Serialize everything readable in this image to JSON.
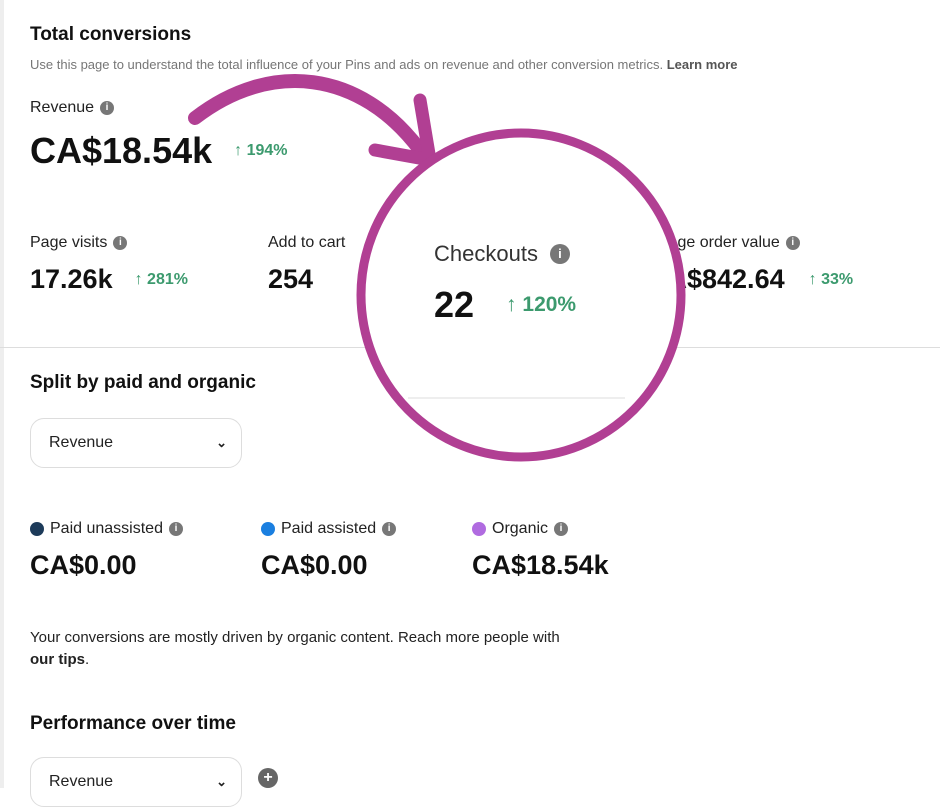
{
  "header": {
    "title": "Total conversions",
    "description": "Use this page to understand the total influence of your Pins and ads on revenue and other conversion metrics.",
    "learn_more": "Learn more"
  },
  "revenue": {
    "label": "Revenue",
    "value": "CA$18.54k",
    "change": "194%"
  },
  "metrics": [
    {
      "label": "Page visits",
      "value": "17.26k",
      "change": "281%"
    },
    {
      "label": "Add to cart",
      "value": "254"
    },
    {
      "label": "Checkouts",
      "value": "22",
      "change": "120%"
    },
    {
      "label": "Average order value",
      "value": "CA$842.64",
      "change": "33%"
    }
  ],
  "split": {
    "title": "Split by paid and organic",
    "select": "Revenue",
    "items": [
      {
        "label": "Paid unassisted",
        "value": "CA$0.00",
        "color": "#1d3b5a"
      },
      {
        "label": "Paid assisted",
        "value": "CA$0.00",
        "color": "#1a7fe0"
      },
      {
        "label": "Organic",
        "value": "CA$18.54k",
        "color": "#b06be0"
      }
    ],
    "note": "Your conversions are mostly driven by organic content. Reach more people with",
    "tips": "our tips",
    "period": "."
  },
  "performance": {
    "title": "Performance over time",
    "select": "Revenue"
  },
  "colors": {
    "accent": "#b13f93",
    "positive": "#3c9a6e"
  }
}
